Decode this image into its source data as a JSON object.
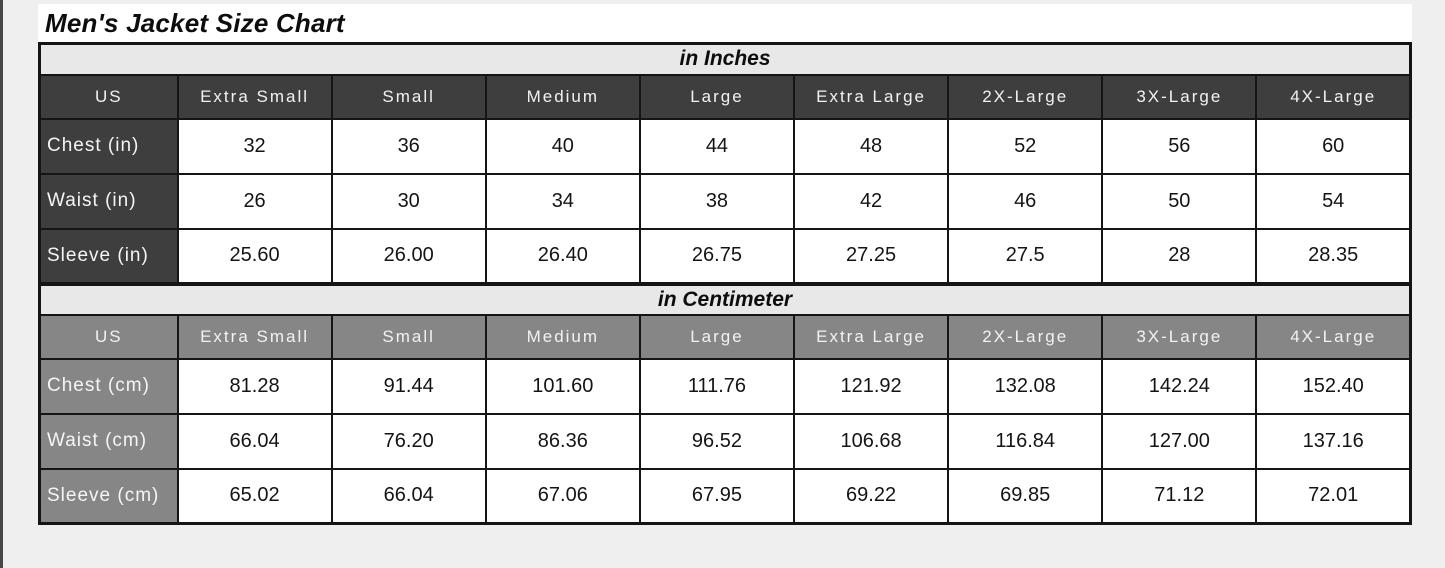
{
  "page": {
    "title": "Men's Jacket Size Chart"
  },
  "sections": [
    {
      "title": "in Inches",
      "header": [
        "US",
        "Extra Small",
        "Small",
        "Medium",
        "Large",
        "Extra Large",
        "2X-Large",
        "3X-Large",
        "4X-Large"
      ],
      "rows": [
        {
          "label": "Chest (in)",
          "values": [
            "32",
            "36",
            "40",
            "44",
            "48",
            "52",
            "56",
            "60"
          ]
        },
        {
          "label": "Waist (in)",
          "values": [
            "26",
            "30",
            "34",
            "38",
            "42",
            "46",
            "50",
            "54"
          ]
        },
        {
          "label": "Sleeve (in)",
          "values": [
            "25.60",
            "26.00",
            "26.40",
            "26.75",
            "27.25",
            "27.5",
            "28",
            "28.35"
          ]
        }
      ]
    },
    {
      "title": "in Centimeter",
      "header": [
        "US",
        "Extra Small",
        "Small",
        "Medium",
        "Large",
        "Extra Large",
        "2X-Large",
        "3X-Large",
        "4X-Large"
      ],
      "rows": [
        {
          "label": "Chest (cm)",
          "values": [
            "81.28",
            "91.44",
            "101.60",
            "111.76",
            "121.92",
            "132.08",
            "142.24",
            "152.40"
          ]
        },
        {
          "label": "Waist (cm)",
          "values": [
            "66.04",
            "76.20",
            "86.36",
            "96.52",
            "106.68",
            "116.84",
            "127.00",
            "137.16"
          ]
        },
        {
          "label": "Sleeve (cm)",
          "values": [
            "65.02",
            "66.04",
            "67.06",
            "67.95",
            "69.22",
            "69.85",
            "71.12",
            "72.01"
          ]
        }
      ]
    }
  ],
  "colors": {
    "page_background": "#efefef",
    "inches_header_fill": "#3e3e3e",
    "centimeter_header_fill": "#868686",
    "section_band_fill": "#e8e8e8",
    "header_text": "#f2f2f2",
    "cell_text": "#141414",
    "border": "#151515"
  }
}
